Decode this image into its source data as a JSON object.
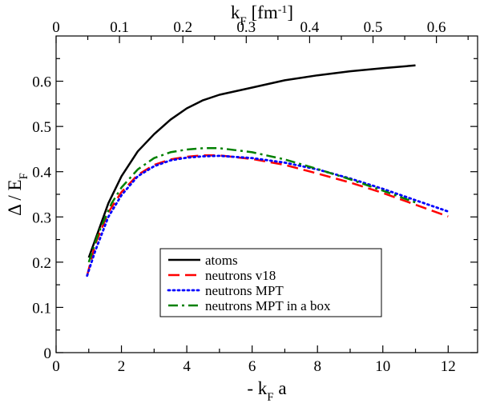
{
  "chart_data": {
    "type": "line",
    "xlabel": "- k",
    "xlabel_sub": "F",
    "xlabel_suffix": " a",
    "ylabel": "Δ / E",
    "ylabel_sub": "F",
    "top_axis_label": "k",
    "top_axis_label_sub": "F",
    "top_axis_label_suffix": " [fm",
    "top_axis_label_sup": "-1",
    "top_axis_label_end": "]",
    "xlim": [
      0,
      12.9
    ],
    "ylim": [
      0,
      0.7
    ],
    "x_ticks": [
      0,
      2,
      4,
      6,
      8,
      10,
      12
    ],
    "x_tick_labels": [
      "0",
      "2",
      "4",
      "6",
      "8",
      "10",
      "12"
    ],
    "y_ticks": [
      0,
      0.1,
      0.2,
      0.3,
      0.4,
      0.5,
      0.6
    ],
    "y_tick_labels": [
      "0",
      "0.1",
      "0.2",
      "0.3",
      "0.4",
      "0.5",
      "0.6"
    ],
    "top_ticks": [
      0,
      0.1,
      0.2,
      0.3,
      0.4,
      0.5,
      0.6
    ],
    "top_tick_labels": [
      "0",
      "0.1",
      "0.2",
      "0.3",
      "0.4",
      "0.5",
      "0.6"
    ],
    "top_kF_to_x": 19.4,
    "grid": false,
    "legend_position": "lower-center",
    "series": [
      {
        "name": "atoms",
        "color": "#000000",
        "dash": "solid",
        "x": [
          1.0,
          1.3,
          1.6,
          2.0,
          2.5,
          3.0,
          3.5,
          4.0,
          4.5,
          5.0,
          6.0,
          7.0,
          8.0,
          9.0,
          10.0,
          11.0
        ],
        "y": [
          0.21,
          0.27,
          0.33,
          0.39,
          0.445,
          0.483,
          0.515,
          0.54,
          0.558,
          0.57,
          0.586,
          0.602,
          0.613,
          0.622,
          0.629,
          0.635
        ]
      },
      {
        "name": "neutrons v18",
        "color": "#ff0000",
        "dash": "dashed",
        "x": [
          0.95,
          1.2,
          1.6,
          2.0,
          2.5,
          3.0,
          3.5,
          4.0,
          4.5,
          5.0,
          6.0,
          7.0,
          8.0,
          9.0,
          10.0,
          11.0,
          12.0
        ],
        "y": [
          0.17,
          0.24,
          0.31,
          0.355,
          0.393,
          0.415,
          0.427,
          0.433,
          0.436,
          0.436,
          0.428,
          0.415,
          0.396,
          0.376,
          0.353,
          0.327,
          0.301
        ]
      },
      {
        "name": "neutrons MPT",
        "color": "#0000ff",
        "dash": "dotted",
        "x": [
          0.95,
          1.2,
          1.6,
          2.0,
          2.5,
          3.0,
          3.5,
          4.0,
          4.5,
          5.0,
          6.0,
          7.0,
          8.0,
          9.0,
          10.0,
          11.0,
          12.0
        ],
        "y": [
          0.17,
          0.225,
          0.3,
          0.348,
          0.39,
          0.412,
          0.425,
          0.431,
          0.434,
          0.435,
          0.43,
          0.42,
          0.405,
          0.385,
          0.362,
          0.337,
          0.312
        ]
      },
      {
        "name": "neutrons MPT in a box",
        "color": "#008000",
        "dash": "dashdot",
        "x": [
          1.0,
          1.3,
          1.7,
          2.0,
          2.5,
          3.0,
          3.5,
          4.0,
          4.5,
          5.0,
          6.0,
          7.0,
          8.0,
          9.0,
          10.0,
          11.0
        ],
        "y": [
          0.2,
          0.265,
          0.33,
          0.365,
          0.405,
          0.43,
          0.443,
          0.449,
          0.452,
          0.452,
          0.443,
          0.427,
          0.406,
          0.383,
          0.358,
          0.332
        ]
      }
    ]
  }
}
